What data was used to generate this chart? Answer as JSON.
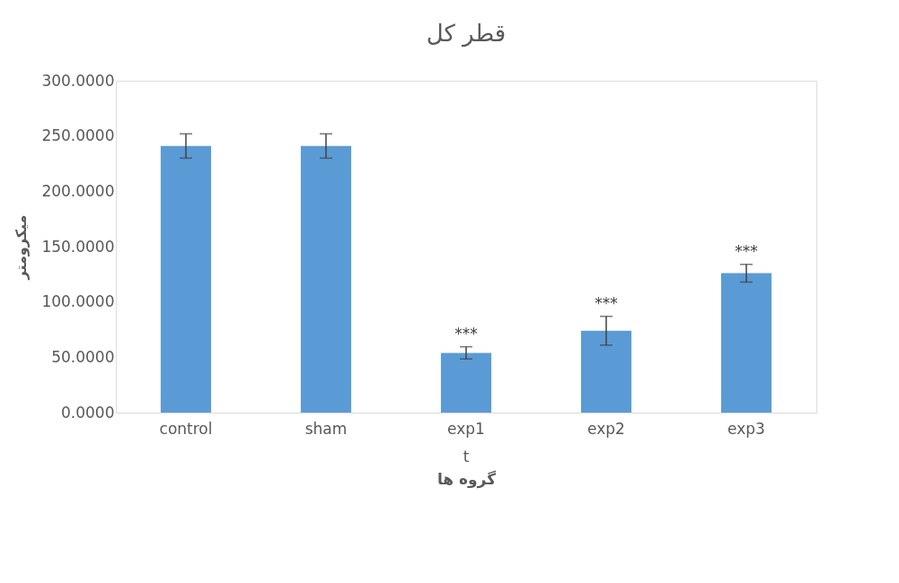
{
  "chart_data": {
    "type": "bar",
    "title": "قطر کل",
    "xlabel": "گروه ها",
    "ylabel": "میکرومتر",
    "categories": [
      "control",
      "sham",
      "exp1",
      "exp2",
      "exp3"
    ],
    "series": [
      {
        "color": "#5b9bd5",
        "values": [
          241,
          241,
          54,
          74,
          126
        ],
        "errors": [
          11,
          11,
          5.5,
          13,
          8
        ]
      }
    ],
    "ylim": [
      0,
      300
    ],
    "yticks": [
      {
        "value": 0,
        "label": "0.0000"
      },
      {
        "value": 50,
        "label": "50.0000"
      },
      {
        "value": 100,
        "label": "100.0000"
      },
      {
        "value": 150,
        "label": "150.0000"
      },
      {
        "value": 200,
        "label": "200.0000"
      },
      {
        "value": 250,
        "label": "250.0000"
      },
      {
        "value": 300,
        "label": "300.0000"
      }
    ],
    "grid": false,
    "annotations": [
      {
        "text": "***",
        "x": "exp1",
        "y": 59.5
      },
      {
        "text": "***",
        "x": "exp2",
        "y": 87
      },
      {
        "text": "***",
        "x": "exp3",
        "y": 134
      },
      "t"
    ]
  }
}
